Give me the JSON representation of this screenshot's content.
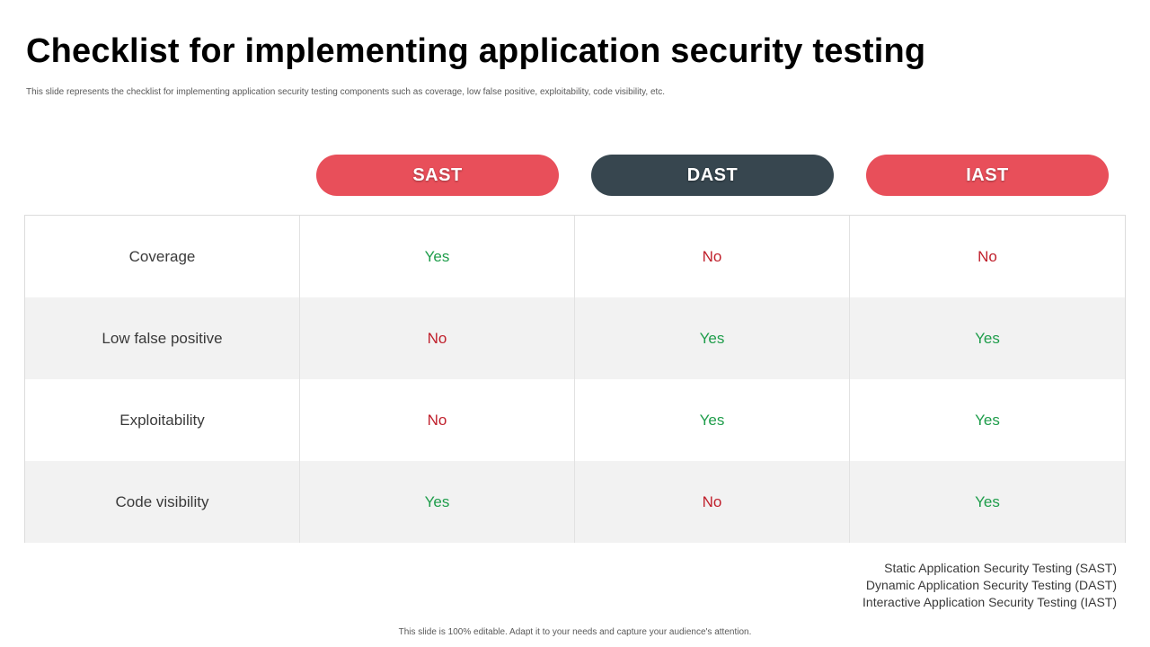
{
  "slide": {
    "title": "Checklist for implementing application security testing",
    "subtitle": "This slide represents the checklist for implementing application security testing components such as coverage, low false positive, exploitability, code visibility, etc.",
    "footer": "This slide is 100% editable. Adapt it to your needs and capture your audience's attention."
  },
  "columns": [
    {
      "label": "SAST",
      "color": "#e84f5a"
    },
    {
      "label": "DAST",
      "color": "#37464f"
    },
    {
      "label": "IAST",
      "color": "#e84f5a"
    }
  ],
  "rows": [
    {
      "label": "Coverage",
      "values": [
        "Yes",
        "No",
        "No"
      ]
    },
    {
      "label": "Low false positive",
      "values": [
        "No",
        "Yes",
        "Yes"
      ]
    },
    {
      "label": "Exploitability",
      "values": [
        "No",
        "Yes",
        "Yes"
      ]
    },
    {
      "label": "Code visibility",
      "values": [
        "Yes",
        "No",
        "Yes"
      ]
    }
  ],
  "legend": [
    "Static Application Security Testing (SAST)",
    "Dynamic Application Security Testing (DAST)",
    "Interactive Application Security Testing (IAST)"
  ],
  "colors": {
    "yes": "#1f9d4b",
    "no": "#c0202c",
    "row_shade": "#f2f2f2"
  }
}
